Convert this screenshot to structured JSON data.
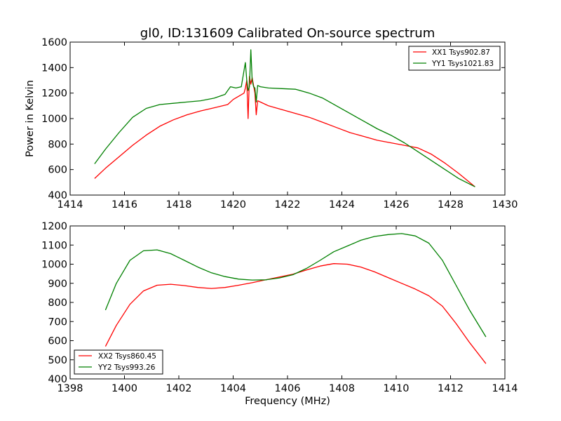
{
  "chart_data": [
    {
      "type": "line",
      "title": "gl0, ID:131609 Calibrated On-source spectrum",
      "xlabel": "",
      "ylabel": "Power in Kelvin",
      "xlim": [
        1414,
        1430
      ],
      "ylim": [
        400,
        1600
      ],
      "xticks": [
        "1414",
        "1416",
        "1418",
        "1420",
        "1422",
        "1424",
        "1426",
        "1428",
        "1430"
      ],
      "yticks": [
        "400",
        "600",
        "800",
        "1000",
        "1200",
        "1400",
        "1600"
      ],
      "legend_position": "top-right",
      "grid": false,
      "series": [
        {
          "name": "XX1 Tsys902.87",
          "color": "#ff0000",
          "x": [
            1414.9,
            1415.3,
            1415.8,
            1416.3,
            1416.8,
            1417.3,
            1417.8,
            1418.3,
            1418.8,
            1419.3,
            1419.8,
            1420.0,
            1420.2,
            1420.4,
            1420.45,
            1420.5,
            1420.55,
            1420.6,
            1420.65,
            1420.7,
            1420.75,
            1420.8,
            1420.85,
            1420.9,
            1421.0,
            1421.3,
            1421.8,
            1422.3,
            1422.8,
            1423.3,
            1423.8,
            1424.3,
            1424.8,
            1425.3,
            1425.8,
            1426.3,
            1426.8,
            1427.3,
            1427.8,
            1428.3,
            1428.9
          ],
          "values": [
            530,
            610,
            700,
            790,
            870,
            940,
            990,
            1030,
            1060,
            1085,
            1110,
            1150,
            1175,
            1200,
            1240,
            1300,
            1000,
            1330,
            1270,
            1320,
            1260,
            1200,
            1030,
            1140,
            1130,
            1100,
            1070,
            1040,
            1010,
            970,
            930,
            890,
            860,
            830,
            810,
            790,
            770,
            720,
            650,
            570,
            465
          ]
        },
        {
          "name": "YY1 Tsys1021.83",
          "color": "#008000",
          "x": [
            1414.9,
            1415.3,
            1415.8,
            1416.3,
            1416.8,
            1417.3,
            1417.8,
            1418.3,
            1418.8,
            1419.3,
            1419.7,
            1419.9,
            1420.1,
            1420.3,
            1420.45,
            1420.5,
            1420.55,
            1420.6,
            1420.65,
            1420.7,
            1420.75,
            1420.8,
            1420.85,
            1420.9,
            1421.0,
            1421.3,
            1421.8,
            1422.3,
            1422.8,
            1423.3,
            1423.8,
            1424.3,
            1424.8,
            1425.3,
            1425.8,
            1426.3,
            1426.8,
            1427.3,
            1427.8,
            1428.3,
            1428.9
          ],
          "values": [
            645,
            760,
            890,
            1010,
            1080,
            1110,
            1120,
            1130,
            1140,
            1160,
            1190,
            1250,
            1240,
            1250,
            1440,
            1300,
            1220,
            1250,
            1540,
            1300,
            1250,
            1240,
            1130,
            1260,
            1250,
            1240,
            1235,
            1230,
            1200,
            1160,
            1100,
            1040,
            980,
            920,
            870,
            810,
            740,
            670,
            600,
            530,
            465
          ]
        }
      ]
    },
    {
      "type": "line",
      "title": "",
      "xlabel": "Frequency (MHz)",
      "ylabel": "",
      "xlim": [
        1398,
        1414
      ],
      "ylim": [
        400,
        1200
      ],
      "xticks": [
        "1398",
        "1400",
        "1402",
        "1404",
        "1406",
        "1408",
        "1410",
        "1412",
        "1414"
      ],
      "yticks": [
        "400",
        "500",
        "600",
        "700",
        "800",
        "900",
        "1000",
        "1100",
        "1200"
      ],
      "legend_position": "bottom-left",
      "grid": false,
      "series": [
        {
          "name": "XX2 Tsys860.45",
          "color": "#ff0000",
          "x": [
            1399.3,
            1399.7,
            1400.2,
            1400.7,
            1401.2,
            1401.7,
            1402.2,
            1402.7,
            1403.2,
            1403.7,
            1404.2,
            1404.7,
            1405.2,
            1405.7,
            1406.2,
            1406.7,
            1407.2,
            1407.7,
            1408.2,
            1408.7,
            1409.2,
            1409.7,
            1410.2,
            1410.7,
            1411.2,
            1411.7,
            1412.2,
            1412.7,
            1413.3
          ],
          "values": [
            570,
            680,
            790,
            860,
            890,
            895,
            888,
            878,
            873,
            878,
            890,
            903,
            918,
            933,
            948,
            970,
            990,
            1003,
            1000,
            985,
            960,
            930,
            900,
            870,
            835,
            780,
            690,
            590,
            480
          ]
        },
        {
          "name": "YY2 Tsys993.26",
          "color": "#008000",
          "x": [
            1399.3,
            1399.7,
            1400.2,
            1400.7,
            1401.2,
            1401.7,
            1402.2,
            1402.7,
            1403.2,
            1403.7,
            1404.2,
            1404.7,
            1405.2,
            1405.7,
            1406.2,
            1406.7,
            1407.2,
            1407.7,
            1408.2,
            1408.7,
            1409.2,
            1409.7,
            1410.2,
            1410.7,
            1411.2,
            1411.7,
            1412.2,
            1412.7,
            1413.3
          ],
          "values": [
            760,
            900,
            1020,
            1070,
            1075,
            1055,
            1020,
            985,
            955,
            935,
            922,
            917,
            918,
            928,
            945,
            978,
            1020,
            1065,
            1095,
            1125,
            1145,
            1155,
            1160,
            1148,
            1110,
            1020,
            890,
            760,
            620
          ]
        }
      ]
    }
  ]
}
